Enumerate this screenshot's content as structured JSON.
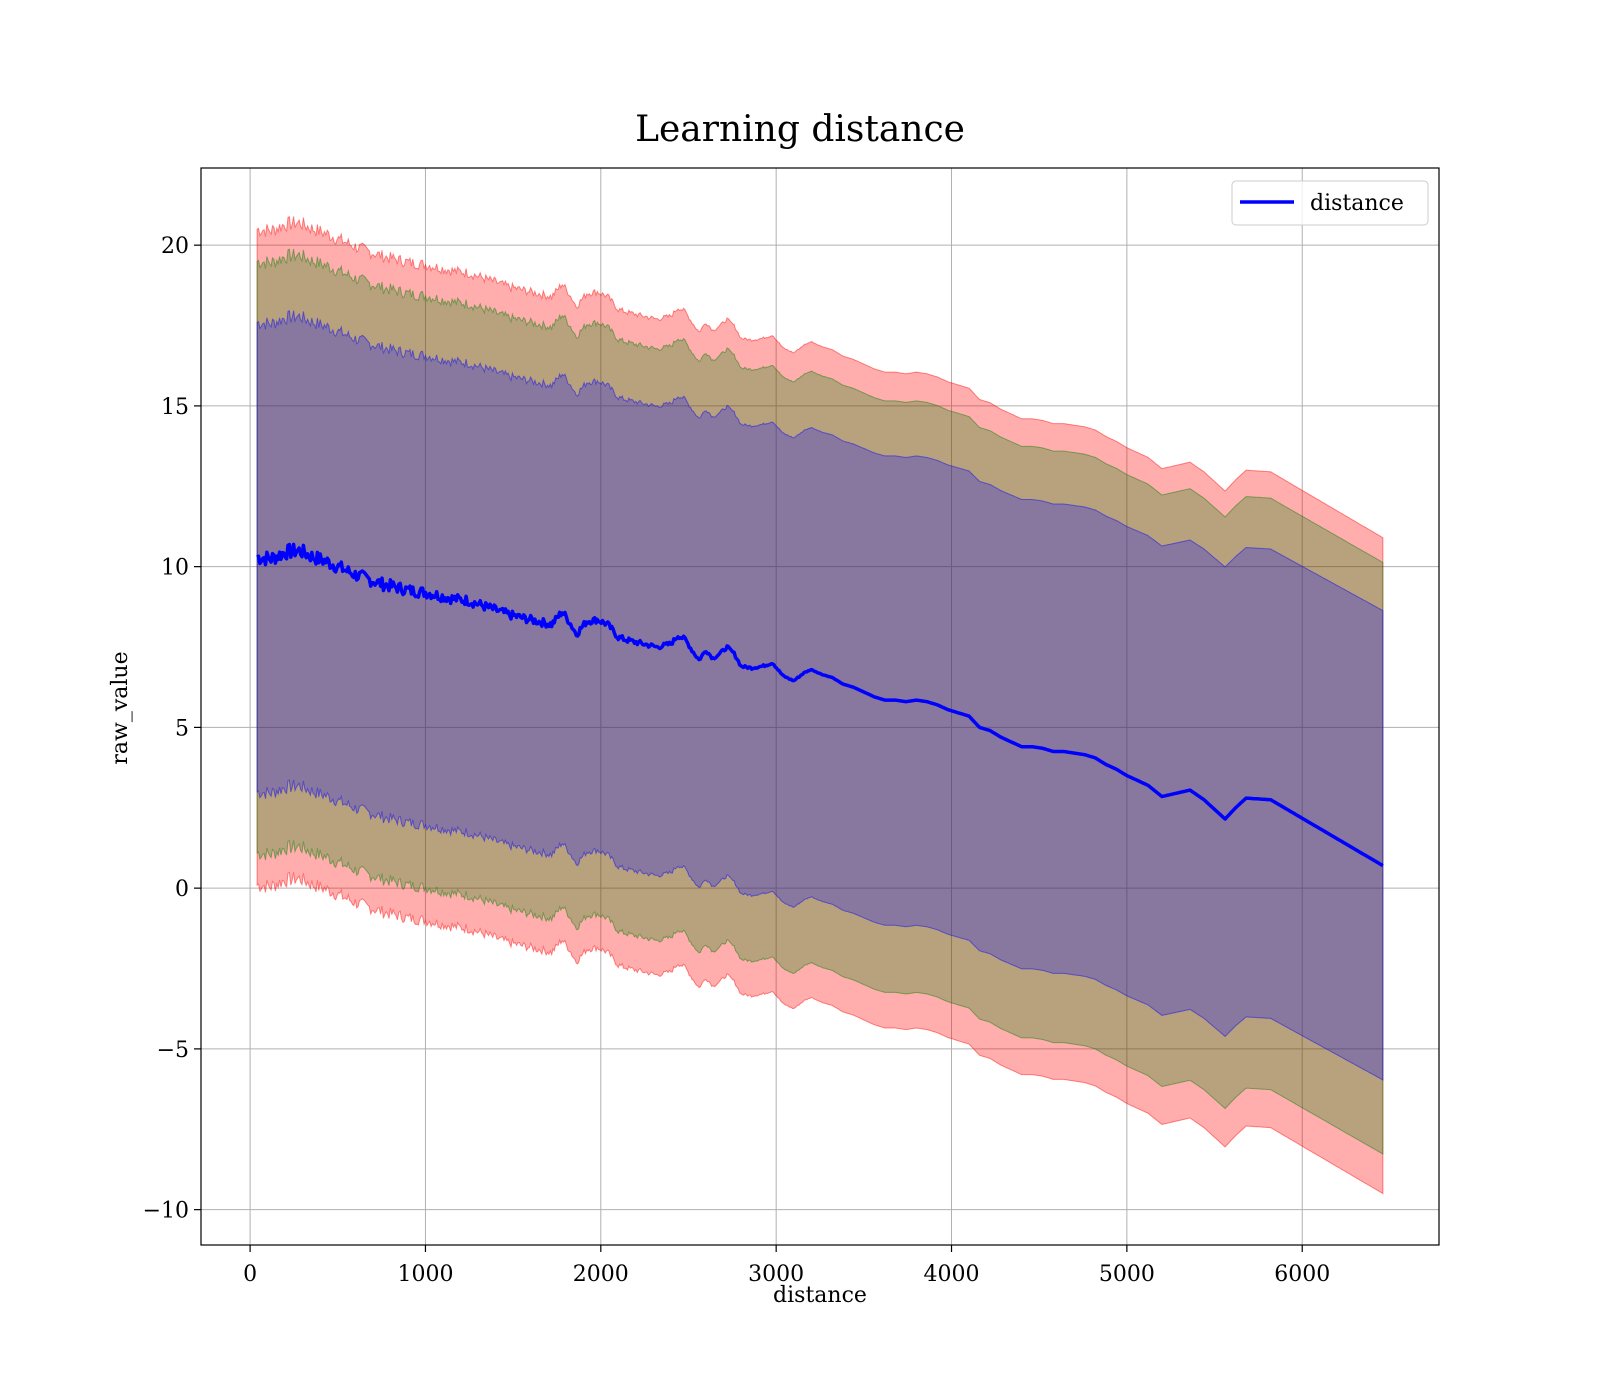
{
  "chart_data": {
    "type": "line",
    "title": "Learning distance",
    "xlabel": "distance",
    "ylabel": "raw_value",
    "xlim": [
      -280,
      6780
    ],
    "ylim": [
      -11.1,
      22.4
    ],
    "x_ticks": [
      0,
      1000,
      2000,
      3000,
      4000,
      5000,
      6000
    ],
    "y_ticks": [
      -10,
      -5,
      0,
      5,
      10,
      15,
      20
    ],
    "x_tick_labels": [
      "0",
      "1000",
      "2000",
      "3000",
      "4000",
      "5000",
      "6000"
    ],
    "y_tick_labels": [
      "−10",
      "−5",
      "0",
      "5",
      "10",
      "15",
      "20"
    ],
    "grid": true,
    "legend_position": "top-right",
    "series": [
      {
        "name": "distance",
        "color": "#0000ff",
        "x": [
          40,
          120,
          200,
          280,
          360,
          440,
          520,
          600,
          680,
          760,
          840,
          920,
          1000,
          1080,
          1160,
          1240,
          1320,
          1400,
          1480,
          1560,
          1640,
          1720,
          1780,
          1820,
          1860,
          1920,
          1980,
          2040,
          2100,
          2160,
          2240,
          2320,
          2400,
          2440,
          2480,
          2520,
          2560,
          2600,
          2640,
          2680,
          2720,
          2760,
          2800,
          2860,
          2920,
          2980,
          3040,
          3100,
          3160,
          3200,
          3260,
          3320,
          3380,
          3440,
          3500,
          3560,
          3620,
          3680,
          3740,
          3800,
          3860,
          3920,
          3980,
          4040,
          4100,
          4160,
          4220,
          4280,
          4340,
          4400,
          4460,
          4520,
          4580,
          4640,
          4700,
          4760,
          4820,
          4880,
          4940,
          5000,
          5060,
          5120,
          5200,
          5280,
          5360,
          5440,
          5520,
          5560,
          5620,
          5680,
          5820,
          6460
        ],
        "y": [
          10.3,
          10.25,
          10.45,
          10.5,
          10.3,
          10.15,
          9.95,
          9.75,
          9.6,
          9.45,
          9.35,
          9.25,
          9.2,
          9.1,
          9.0,
          8.95,
          8.8,
          8.65,
          8.5,
          8.4,
          8.3,
          8.2,
          8.6,
          8.3,
          7.9,
          8.3,
          8.35,
          8.2,
          7.8,
          7.7,
          7.6,
          7.5,
          7.6,
          7.85,
          7.75,
          7.4,
          7.1,
          7.4,
          7.15,
          7.3,
          7.5,
          7.3,
          6.9,
          6.85,
          6.9,
          7.0,
          6.6,
          6.45,
          6.7,
          6.8,
          6.65,
          6.55,
          6.35,
          6.25,
          6.1,
          5.95,
          5.85,
          5.85,
          5.8,
          5.85,
          5.8,
          5.7,
          5.55,
          5.45,
          5.35,
          5.0,
          4.9,
          4.7,
          4.55,
          4.4,
          4.4,
          4.35,
          4.25,
          4.25,
          4.2,
          4.15,
          4.05,
          3.85,
          3.7,
          3.5,
          3.35,
          3.2,
          2.85,
          2.95,
          3.05,
          2.75,
          2.35,
          2.15,
          2.5,
          2.8,
          2.75,
          0.7
        ]
      }
    ],
    "bands": [
      {
        "color": "#ff0000",
        "opacity": 0.32,
        "offset": 10.2,
        "scale": 1.0
      },
      {
        "color": "#008000",
        "opacity": 0.28,
        "offset": 9.2,
        "scale": 0.92
      },
      {
        "color": "#0000ff",
        "opacity": 0.26,
        "offset": 7.3,
        "scale": 0.78
      }
    ]
  }
}
